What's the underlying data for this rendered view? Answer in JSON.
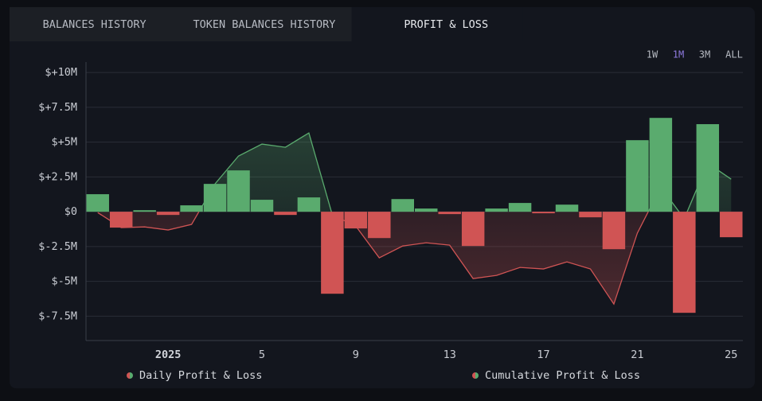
{
  "tabs": [
    "BALANCES HISTORY",
    "TOKEN BALANCES HISTORY",
    "PROFIT & LOSS"
  ],
  "active_tab": 2,
  "ranges": [
    "1W",
    "1M",
    "3M",
    "ALL"
  ],
  "active_range": 1,
  "chart_data": {
    "type": "bar",
    "categories": [
      null,
      null,
      null,
      "2025",
      null,
      null,
      null,
      "5",
      null,
      null,
      null,
      "9",
      null,
      null,
      null,
      "13",
      null,
      null,
      null,
      "17",
      null,
      null,
      null,
      "21",
      null,
      null,
      null,
      "25"
    ],
    "series": [
      {
        "name": "Daily Profit & Loss",
        "type": "bar",
        "color_positive": "#5aab6e",
        "color_negative": "#d05454",
        "values": [
          1.26,
          -1.14,
          0.11,
          -0.23,
          0.46,
          2.0,
          2.97,
          0.86,
          -0.23,
          1.03,
          -5.89,
          -1.2,
          -1.89,
          0.91,
          0.23,
          -0.17,
          -2.46,
          0.23,
          0.63,
          -0.11,
          0.51,
          -0.4,
          -2.69,
          5.14,
          6.74,
          -7.26,
          6.29,
          -1.83
        ]
      },
      {
        "name": "Cumulative Profit & Loss",
        "type": "line",
        "color_positive": "#5aab6e",
        "color_negative": "#d05454",
        "values": [
          -0.06,
          -1.14,
          -1.09,
          -1.31,
          -0.91,
          2.0,
          4.0,
          4.86,
          4.63,
          5.66,
          -0.23,
          -1.03,
          -3.31,
          -2.46,
          -2.23,
          -2.4,
          -4.8,
          -4.57,
          -4.0,
          -4.11,
          -3.6,
          -4.11,
          -6.63,
          -1.54,
          1.77,
          -0.5,
          3.49,
          2.34
        ]
      }
    ],
    "ylim": [
      -9.25,
      10.75
    ],
    "yticks": [
      {
        "value": 10,
        "label": "$+10M"
      },
      {
        "value": 7.5,
        "label": "$+7.5M"
      },
      {
        "value": 5,
        "label": "$+5M"
      },
      {
        "value": 2.5,
        "label": "$+2.5M"
      },
      {
        "value": 0,
        "label": "$0"
      },
      {
        "value": -2.5,
        "label": "$-2.5M"
      },
      {
        "value": -5,
        "label": "$-5M"
      },
      {
        "value": -7.5,
        "label": "$-7.5M"
      }
    ],
    "grid": true
  }
}
